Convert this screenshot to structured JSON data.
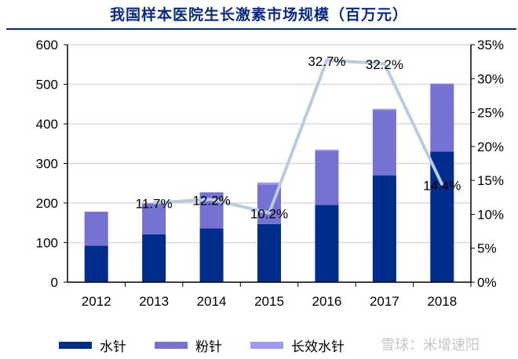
{
  "chart_data": {
    "type": "bar",
    "title": "我国样本医院生长激素市场规模（百万元）",
    "categories": [
      "2012",
      "2013",
      "2014",
      "2015",
      "2016",
      "2017",
      "2018"
    ],
    "stacked": true,
    "series": [
      {
        "name": "水针",
        "values": [
          92,
          121,
          136,
          147,
          195,
          270,
          330
        ],
        "color": "#002c8c"
      },
      {
        "name": "粉针",
        "values": [
          86,
          78,
          91,
          100,
          137,
          165,
          170
        ],
        "color": "#7672d2"
      },
      {
        "name": "长效水针",
        "values": [
          0,
          0,
          0,
          5,
          3,
          3,
          2
        ],
        "color": "#9d9cf0"
      }
    ],
    "line": {
      "axis": "right",
      "color": "#b8cbe0",
      "categories": [
        "2013",
        "2014",
        "2015",
        "2016",
        "2017",
        "2018"
      ],
      "values": [
        11.7,
        12.2,
        10.2,
        32.7,
        32.2,
        14.4
      ],
      "labels": [
        "11.7%",
        "12.2%",
        "10.2%",
        "32.7%",
        "32.2%",
        "14.4%"
      ]
    },
    "y_left": {
      "lim": [
        0,
        600
      ],
      "ticks": [
        "0",
        "100",
        "200",
        "300",
        "400",
        "500",
        "600"
      ]
    },
    "y_right": {
      "lim": [
        0,
        35
      ],
      "ticks": [
        "0%",
        "5%",
        "10%",
        "15%",
        "20%",
        "25%",
        "30%",
        "35%"
      ]
    },
    "grid": true,
    "legend_position": "bottom",
    "watermark": "雪球：米增速阳"
  }
}
